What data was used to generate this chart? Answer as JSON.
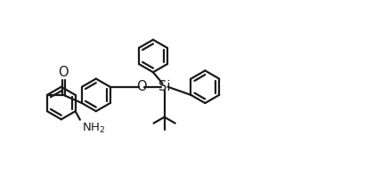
{
  "bg_color": "#ffffff",
  "line_color": "#1a1a1a",
  "line_width": 1.6,
  "text_color": "#1a1a1a",
  "font_size": 9.5,
  "figsize": [
    4.38,
    2.06
  ],
  "dpi": 100,
  "xlim": [
    0,
    10
  ],
  "ylim": [
    0,
    4.7
  ]
}
